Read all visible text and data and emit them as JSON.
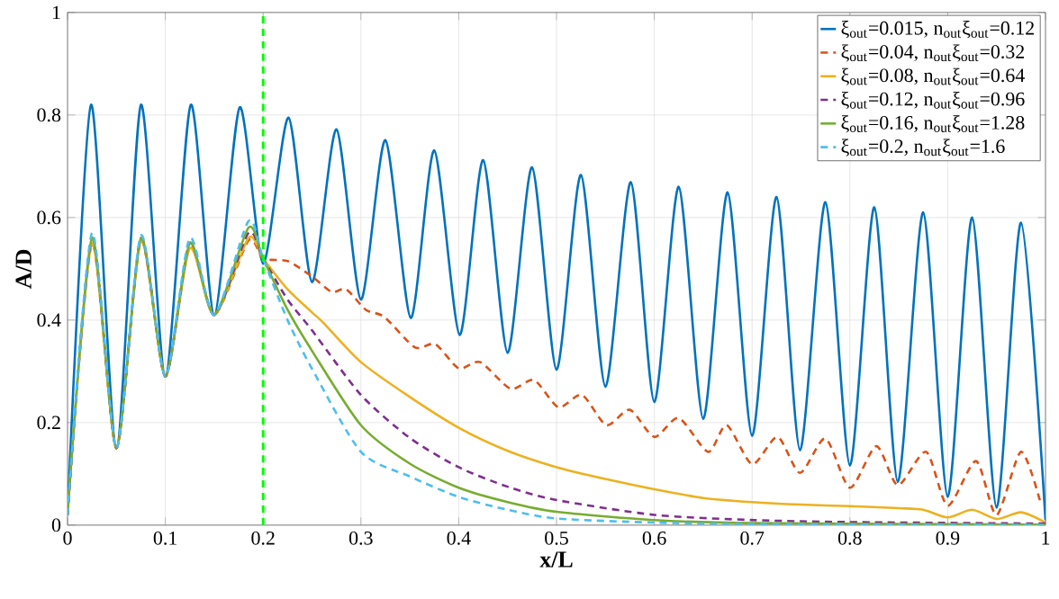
{
  "chart_data": {
    "type": "line",
    "xlabel": "x/L",
    "ylabel": "A/D",
    "xlim": [
      0,
      1
    ],
    "ylim": [
      0,
      1
    ],
    "xticks": [
      0,
      0.1,
      0.2,
      0.3,
      0.4,
      0.5,
      0.6,
      0.7,
      0.8,
      0.9,
      1
    ],
    "yticks": [
      0,
      0.2,
      0.4,
      0.6,
      0.8,
      1
    ],
    "grid": true,
    "legend": "top right",
    "marker": "none",
    "ref_lines": [
      {
        "axis": "x",
        "value": 0.2,
        "color": "#00ff00",
        "line_style": "dashed"
      }
    ],
    "series": [
      {
        "name": "ξ$_{out}$=0.015, n$_{out}$ξ$_{out}$=0.12",
        "color": "#0072bd",
        "line_style": "solid",
        "x": [
          0,
          0.024,
          0.05,
          0.075,
          0.1,
          0.126,
          0.15,
          0.176,
          0.2,
          0.226,
          0.25,
          0.275,
          0.3,
          0.325,
          0.351,
          0.375,
          0.401,
          0.425,
          0.45,
          0.475,
          0.5,
          0.525,
          0.55,
          0.576,
          0.6,
          0.625,
          0.65,
          0.675,
          0.7,
          0.725,
          0.749,
          0.775,
          0.8,
          0.825,
          0.849,
          0.875,
          0.9,
          0.925,
          0.95,
          0.975,
          1
        ],
        "values": [
          0.02,
          0.82,
          0.15,
          0.82,
          0.29,
          0.82,
          0.41,
          0.815,
          0.51,
          0.795,
          0.474,
          0.772,
          0.44,
          0.751,
          0.404,
          0.731,
          0.371,
          0.712,
          0.336,
          0.698,
          0.303,
          0.683,
          0.27,
          0.669,
          0.24,
          0.66,
          0.207,
          0.649,
          0.174,
          0.64,
          0.146,
          0.63,
          0.116,
          0.62,
          0.084,
          0.61,
          0.055,
          0.6,
          0.034,
          0.59,
          0.01
        ]
      },
      {
        "name": "ξ$_{out}$=0.04, n$_{out}$ξ$_{out}$=0.32",
        "color": "#d95319",
        "line_style": "dashed",
        "x": [
          0,
          0.025,
          0.05,
          0.075,
          0.1,
          0.125,
          0.15,
          0.185,
          0.2,
          0.225,
          0.25,
          0.27,
          0.285,
          0.305,
          0.324,
          0.355,
          0.376,
          0.4,
          0.422,
          0.453,
          0.477,
          0.502,
          0.526,
          0.551,
          0.575,
          0.6,
          0.625,
          0.655,
          0.674,
          0.7,
          0.726,
          0.749,
          0.775,
          0.8,
          0.827,
          0.849,
          0.878,
          0.9,
          0.929,
          0.95,
          0.975,
          0.995
        ],
        "values": [
          0.02,
          0.55,
          0.15,
          0.555,
          0.29,
          0.545,
          0.41,
          0.555,
          0.52,
          0.515,
          0.485,
          0.455,
          0.46,
          0.42,
          0.406,
          0.347,
          0.353,
          0.306,
          0.318,
          0.266,
          0.283,
          0.23,
          0.254,
          0.195,
          0.225,
          0.172,
          0.209,
          0.143,
          0.195,
          0.119,
          0.172,
          0.102,
          0.169,
          0.073,
          0.154,
          0.078,
          0.143,
          0.038,
          0.125,
          0.02,
          0.143,
          0.043
        ]
      },
      {
        "name": "ξ$_{out}$=0.08, n$_{out}$ξ$_{out}$=0.64",
        "color": "#edb120",
        "line_style": "solid",
        "x": [
          0,
          0.025,
          0.05,
          0.075,
          0.1,
          0.125,
          0.15,
          0.185,
          0.2,
          0.225,
          0.25,
          0.262,
          0.3,
          0.35,
          0.4,
          0.45,
          0.5,
          0.55,
          0.6,
          0.65,
          0.7,
          0.75,
          0.8,
          0.85,
          0.875,
          0.9,
          0.925,
          0.95,
          0.975,
          1
        ],
        "values": [
          0.02,
          0.55,
          0.15,
          0.555,
          0.29,
          0.54,
          0.41,
          0.56,
          0.52,
          0.46,
          0.415,
          0.394,
          0.318,
          0.25,
          0.19,
          0.145,
          0.113,
          0.09,
          0.07,
          0.053,
          0.045,
          0.04,
          0.037,
          0.033,
          0.03,
          0.015,
          0.03,
          0.012,
          0.025,
          0.005
        ]
      },
      {
        "name": "ξ$_{out}$=0.12, n$_{out}$ξ$_{out}$=0.96",
        "color": "#7e2f8e",
        "line_style": "dashed",
        "x": [
          0,
          0.025,
          0.05,
          0.075,
          0.1,
          0.125,
          0.15,
          0.185,
          0.2,
          0.225,
          0.25,
          0.3,
          0.35,
          0.4,
          0.45,
          0.5,
          0.6,
          0.7,
          0.8,
          1
        ],
        "values": [
          0.02,
          0.56,
          0.15,
          0.56,
          0.29,
          0.55,
          0.41,
          0.57,
          0.52,
          0.44,
          0.38,
          0.254,
          0.17,
          0.113,
          0.075,
          0.049,
          0.02,
          0.01,
          0.006,
          0.003
        ]
      },
      {
        "name": "ξ$_{out}$=0.16, n$_{out}$ξ$_{out}$=1.28",
        "color": "#77ac30",
        "line_style": "solid",
        "x": [
          0,
          0.025,
          0.05,
          0.075,
          0.1,
          0.125,
          0.15,
          0.185,
          0.2,
          0.225,
          0.25,
          0.3,
          0.35,
          0.4,
          0.45,
          0.5,
          0.6,
          0.7,
          1
        ],
        "values": [
          0.02,
          0.56,
          0.15,
          0.56,
          0.29,
          0.55,
          0.41,
          0.58,
          0.52,
          0.42,
          0.34,
          0.195,
          0.12,
          0.073,
          0.045,
          0.026,
          0.01,
          0.004,
          0.001
        ]
      },
      {
        "name": "ξ$_{out}$=0.2, n$_{out}$ξ$_{out}$=1.6",
        "color": "#4dbeee",
        "line_style": "dashed",
        "x": [
          0,
          0.025,
          0.05,
          0.075,
          0.1,
          0.125,
          0.15,
          0.185,
          0.2,
          0.225,
          0.25,
          0.3,
          0.35,
          0.4,
          0.45,
          0.5,
          0.6,
          0.7,
          1
        ],
        "values": [
          0.02,
          0.57,
          0.15,
          0.565,
          0.29,
          0.56,
          0.41,
          0.593,
          0.52,
          0.4,
          0.305,
          0.143,
          0.095,
          0.055,
          0.03,
          0.013,
          0.005,
          0.002,
          0
        ]
      }
    ]
  }
}
